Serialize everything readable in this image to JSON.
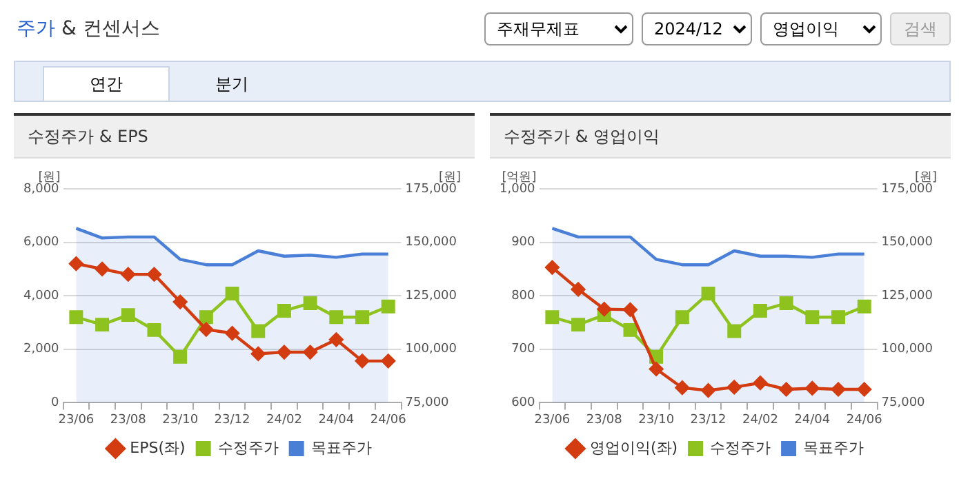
{
  "chart_data": [
    {
      "type": "other",
      "title": "주가 & 컨센서스",
      "annotations": [
        "주재무제표",
        "2024/12",
        "영업이익",
        "검색",
        "연간",
        "분기"
      ]
    },
    {
      "type": "line",
      "title": "수정주가 & EPS",
      "ylabel": "[원]",
      "y2label": "[원]",
      "categories": [
        "23/06",
        null,
        "23/08",
        null,
        "23/10",
        null,
        "23/12",
        null,
        "24/02",
        null,
        "24/04",
        null,
        "24/06"
      ],
      "ylim": [
        0,
        8000
      ],
      "yticks": [
        {
          "value": 0,
          "label": "0"
        },
        {
          "value": 2000,
          "label": "2,000"
        },
        {
          "value": 4000,
          "label": "4,000"
        },
        {
          "value": 6000,
          "label": "6,000"
        },
        {
          "value": 8000,
          "label": "8,000"
        }
      ],
      "y2lim": [
        75000,
        175000
      ],
      "y2ticks": [
        {
          "value": 75000,
          "label": "75,000"
        },
        {
          "value": 100000,
          "label": "100,000"
        },
        {
          "value": 125000,
          "label": "125,000"
        },
        {
          "value": 150000,
          "label": "150,000"
        },
        {
          "value": 175000,
          "label": "175,000"
        }
      ],
      "grid": "y",
      "legend": "bottom",
      "series": [
        {
          "name": "목표주가",
          "type": "area",
          "axis": "y2",
          "color": "#4a7fd8",
          "marker": "none",
          "values": [
            156500,
            152000,
            152500,
            152500,
            142000,
            139500,
            139500,
            146000,
            143500,
            144000,
            143000,
            144500,
            144500
          ]
        },
        {
          "name": "EPS(좌)",
          "type": "line",
          "axis": "y",
          "color": "#d33c10",
          "marker": "diamond",
          "values": [
            5200,
            5000,
            4800,
            4800,
            3770,
            2740,
            2600,
            1830,
            1890,
            1890,
            2360,
            1560,
            1560
          ]
        },
        {
          "name": "수정주가",
          "type": "line",
          "axis": "y2",
          "color": "#8dc21f",
          "marker": "square",
          "values": [
            115000,
            111500,
            116000,
            109000,
            96500,
            115000,
            126000,
            108500,
            118000,
            121500,
            115000,
            115000,
            120000
          ]
        }
      ]
    },
    {
      "type": "line",
      "title": "수정주가 & 영업이익",
      "ylabel": "[억원]",
      "y2label": "[원]",
      "categories": [
        "23/06",
        null,
        "23/08",
        null,
        "23/10",
        null,
        "23/12",
        null,
        "24/02",
        null,
        "24/04",
        null,
        "24/06"
      ],
      "ylim": [
        600,
        1000
      ],
      "yticks": [
        {
          "value": 600,
          "label": "600"
        },
        {
          "value": 700,
          "label": "700"
        },
        {
          "value": 800,
          "label": "800"
        },
        {
          "value": 900,
          "label": "900"
        },
        {
          "value": 1000,
          "label": "1,000"
        }
      ],
      "y2lim": [
        75000,
        175000
      ],
      "y2ticks": [
        {
          "value": 75000,
          "label": "75,000"
        },
        {
          "value": 100000,
          "label": "100,000"
        },
        {
          "value": 125000,
          "label": "125,000"
        },
        {
          "value": 150000,
          "label": "150,000"
        },
        {
          "value": 175000,
          "label": "175,000"
        }
      ],
      "grid": "y",
      "legend": "bottom",
      "series": [
        {
          "name": "목표주가",
          "type": "area",
          "axis": "y2",
          "color": "#4a7fd8",
          "marker": "none",
          "values": [
            156500,
            152500,
            152500,
            152500,
            142000,
            139500,
            139500,
            146000,
            143500,
            143500,
            143000,
            144500,
            144500
          ]
        },
        {
          "name": "영업이익(좌)",
          "type": "line",
          "axis": "y",
          "color": "#d33c10",
          "marker": "diamond",
          "values": [
            853,
            812,
            775,
            774,
            663,
            628,
            623,
            629,
            637,
            625,
            627,
            625,
            625
          ]
        },
        {
          "name": "수정주가",
          "type": "line",
          "axis": "y2",
          "color": "#8dc21f",
          "marker": "square",
          "values": [
            115000,
            111500,
            116000,
            109000,
            96500,
            115000,
            126000,
            108500,
            118000,
            121500,
            115000,
            115000,
            120000
          ]
        }
      ]
    }
  ]
}
